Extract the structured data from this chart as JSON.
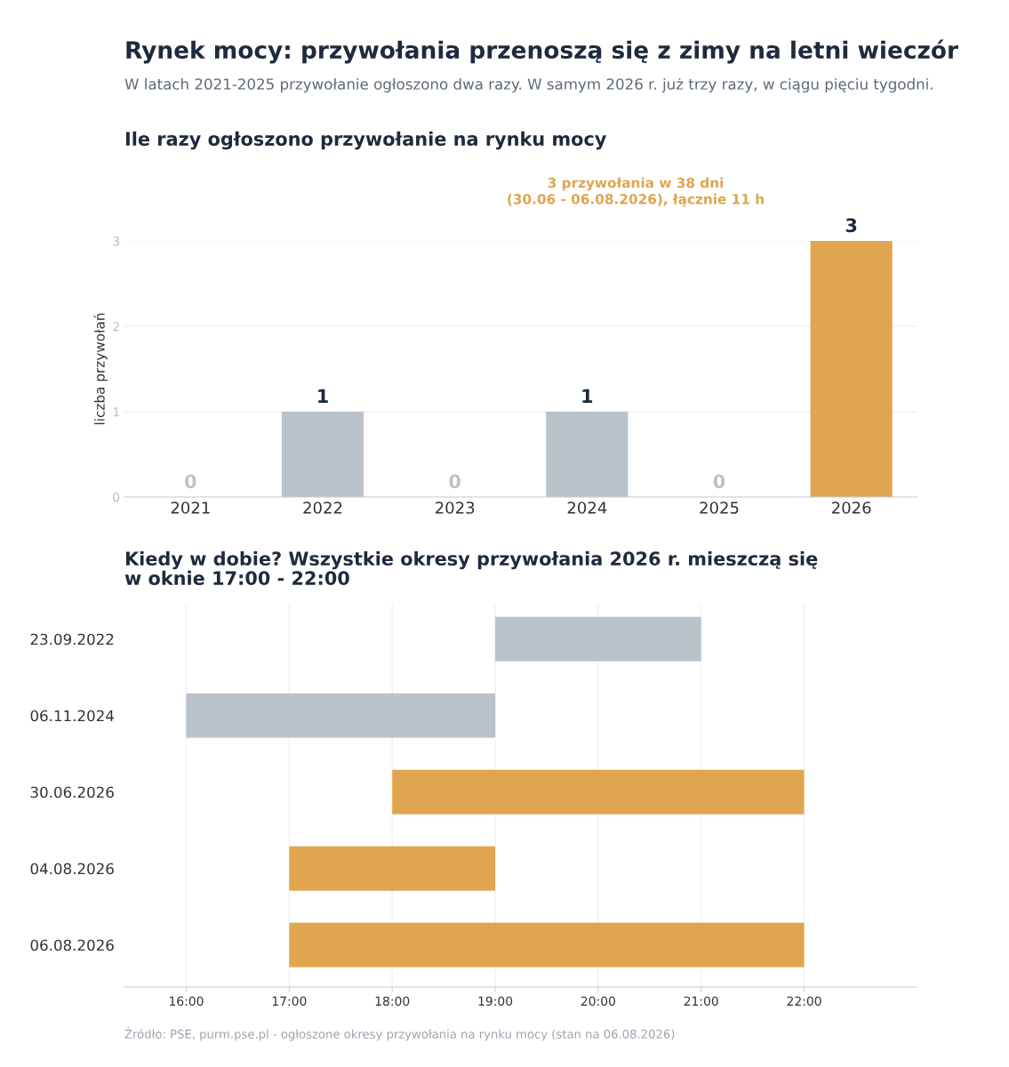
{
  "chart_data": [
    {
      "type": "bar",
      "title": "Rynek mocy: przywołania przenoszą się z zimy na letni wieczór",
      "subtitle": "W latach 2021-2025 przywołanie ogłoszono dwa razy. W samym 2026 r. już trzy razy, w ciągu pięciu tygodni.",
      "annotations": [
        "Ile razy ogłoszono przywołanie na rynku mocy",
        "3 przywołania w 38 dni\n(30.06 - 06.08.2026), łącznie 11 h"
      ],
      "ylabel": "liczba przywołań",
      "categories": [
        "2021",
        "2022",
        "2023",
        "2024",
        "2025",
        "2026"
      ],
      "values": [
        0,
        1,
        0,
        1,
        0,
        3
      ],
      "colors": [
        "#bac3cb",
        "#bac3cb",
        "#bac3cb",
        "#bac3cb",
        "#bac3cb",
        "#dfa54f"
      ],
      "ylim": [
        0,
        3
      ],
      "yticks": [
        0,
        1,
        2,
        3
      ],
      "grid": "y",
      "data_labels": true,
      "legend": false
    },
    {
      "type": "bar",
      "orientation": "horizontal",
      "title": "Kiedy w dobie? Wszystkie okresy przywołania 2026 r. mieszczą się\nw oknie 17:00 - 22:00",
      "annotations": [
        "Źródło: PSE, purm.pse.pl - ogłoszone okresy przywołania na rynku mocy (stan na 06.08.2026)"
      ],
      "categories": [
        "23.09.2022",
        "06.11.2024",
        "30.06.2026",
        "04.08.2026",
        "06.08.2026"
      ],
      "base": [
        19,
        16,
        18,
        17,
        17
      ],
      "values": [
        2,
        3,
        4,
        2,
        5
      ],
      "colors": [
        "#bac3cb",
        "#bac3cb",
        "#dfa54f",
        "#dfa54f",
        "#dfa54f"
      ],
      "xlim": [
        15.4,
        23.1
      ],
      "xticks": [
        {
          "value": 16,
          "label": "16:00"
        },
        {
          "value": 17,
          "label": "17:00"
        },
        {
          "value": 18,
          "label": "18:00"
        },
        {
          "value": 19,
          "label": "19:00"
        },
        {
          "value": 20,
          "label": "20:00"
        },
        {
          "value": 21,
          "label": "21:00"
        },
        {
          "value": 22,
          "label": "22:00"
        }
      ],
      "grid": "x",
      "legend": false
    }
  ]
}
